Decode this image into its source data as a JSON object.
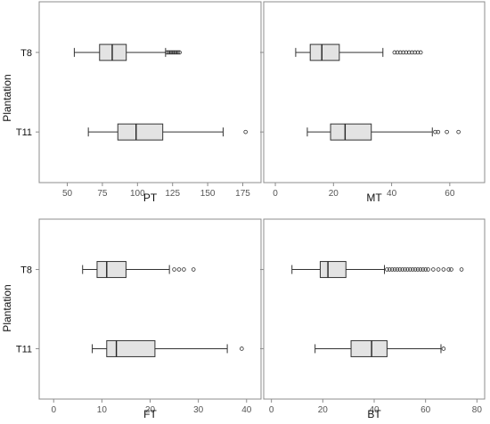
{
  "figure": {
    "ylabel": "Plantation"
  },
  "chart_data": [
    {
      "type": "boxplot",
      "xlabel": "PT",
      "xlim": [
        30,
        188
      ],
      "xticks": [
        50,
        75,
        100,
        125,
        150,
        175
      ],
      "categories": [
        "T8",
        "T11"
      ],
      "boxes": [
        {
          "category": "T8",
          "whisker_low": 55,
          "q1": 73,
          "median": 82,
          "q3": 92,
          "whisker_high": 120,
          "outliers": [
            121,
            122,
            123,
            124,
            125,
            126,
            127,
            128,
            129,
            130
          ]
        },
        {
          "category": "T11",
          "whisker_low": 65,
          "q1": 86,
          "median": 99,
          "q3": 118,
          "whisker_high": 161,
          "outliers": [
            177
          ]
        }
      ]
    },
    {
      "type": "boxplot",
      "xlabel": "MT",
      "xlim": [
        -4,
        72
      ],
      "xticks": [
        0,
        20,
        40,
        60
      ],
      "categories": [
        "T8",
        "T11"
      ],
      "boxes": [
        {
          "category": "T8",
          "whisker_low": 7,
          "q1": 12,
          "median": 16,
          "q3": 22,
          "whisker_high": 37,
          "outliers": [
            41,
            42,
            43,
            44,
            45,
            46,
            47,
            48,
            49,
            50
          ]
        },
        {
          "category": "T11",
          "whisker_low": 11,
          "q1": 19,
          "median": 24,
          "q3": 33,
          "whisker_high": 54,
          "outliers": [
            55,
            56,
            59,
            63
          ]
        }
      ]
    },
    {
      "type": "boxplot",
      "xlabel": "FT",
      "xlim": [
        -3,
        43
      ],
      "xticks": [
        0,
        10,
        20,
        30,
        40
      ],
      "categories": [
        "T8",
        "T11"
      ],
      "boxes": [
        {
          "category": "T8",
          "whisker_low": 6,
          "q1": 9,
          "median": 11,
          "q3": 15,
          "whisker_high": 24,
          "outliers": [
            25,
            26,
            27,
            29
          ]
        },
        {
          "category": "T11",
          "whisker_low": 8,
          "q1": 11,
          "median": 13,
          "q3": 21,
          "whisker_high": 36,
          "outliers": [
            39
          ]
        }
      ]
    },
    {
      "type": "boxplot",
      "xlabel": "BT",
      "xlim": [
        -3,
        83
      ],
      "xticks": [
        0,
        20,
        40,
        60,
        80
      ],
      "categories": [
        "T8",
        "T11"
      ],
      "boxes": [
        {
          "category": "T8",
          "whisker_low": 8,
          "q1": 19,
          "median": 22,
          "q3": 29,
          "whisker_high": 44,
          "outliers": [
            45,
            46,
            47,
            48,
            49,
            50,
            51,
            52,
            53,
            54,
            55,
            56,
            57,
            58,
            59,
            60,
            61,
            63,
            65,
            67,
            69,
            70,
            74
          ]
        },
        {
          "category": "T11",
          "whisker_low": 17,
          "q1": 31,
          "median": 39,
          "q3": 45,
          "whisker_high": 66,
          "outliers": [
            67
          ]
        }
      ]
    }
  ]
}
